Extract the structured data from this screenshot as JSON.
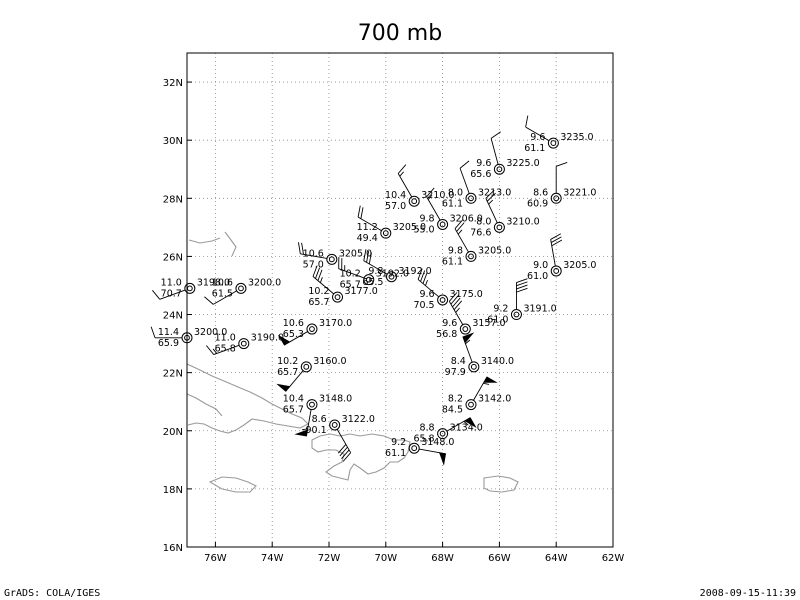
{
  "title": "700 mb",
  "footer": {
    "left": "GrADS: COLA/IGES",
    "right": "2008-09-15-11:39"
  },
  "map": {
    "lon_range": [
      -77,
      -62
    ],
    "lat_range": [
      16,
      33
    ],
    "lon_ticks": [
      {
        "value": -76,
        "label": "76W"
      },
      {
        "value": -74,
        "label": "74W"
      },
      {
        "value": -72,
        "label": "72W"
      },
      {
        "value": -70,
        "label": "70W"
      },
      {
        "value": -68,
        "label": "68W"
      },
      {
        "value": -66,
        "label": "66W"
      },
      {
        "value": -64,
        "label": "64W"
      },
      {
        "value": -62,
        "label": "62W"
      }
    ],
    "lat_ticks": [
      {
        "value": 16,
        "label": "16N"
      },
      {
        "value": 18,
        "label": "18N"
      },
      {
        "value": 20,
        "label": "20N"
      },
      {
        "value": 22,
        "label": "22N"
      },
      {
        "value": 24,
        "label": "24N"
      },
      {
        "value": 26,
        "label": "26N"
      },
      {
        "value": 28,
        "label": "28N"
      },
      {
        "value": 30,
        "label": "30N"
      },
      {
        "value": 32,
        "label": "32N"
      }
    ],
    "grid": true
  },
  "stations": [
    {
      "lon": -64.1,
      "lat": 29.9,
      "temp": "9.6",
      "rh": "61.1",
      "height": "3235.0",
      "dir": 300,
      "spd": 10
    },
    {
      "lon": -66.0,
      "lat": 29.0,
      "temp": "9.6",
      "rh": "65.6",
      "height": "3225.0",
      "dir": 345,
      "spd": 10
    },
    {
      "lon": -64.0,
      "lat": 28.0,
      "temp": "8.6",
      "rh": "60.9",
      "height": "3221.0",
      "dir": 0,
      "spd": 10
    },
    {
      "lon": -67.0,
      "lat": 28.0,
      "temp": "8.0",
      "rh": "61.1",
      "height": "3213.0",
      "dir": 340,
      "spd": 10
    },
    {
      "lon": -69.0,
      "lat": 27.9,
      "temp": "10.4",
      "rh": "57.0",
      "height": "3210.0",
      "dir": 330,
      "spd": 15
    },
    {
      "lon": -68.0,
      "lat": 27.1,
      "temp": "9.8",
      "rh": "55.0",
      "height": "3206.0",
      "dir": 330,
      "spd": 15
    },
    {
      "lon": -66.0,
      "lat": 27.0,
      "temp": "8.0",
      "rh": "76.6",
      "height": "3210.0",
      "dir": 335,
      "spd": 25
    },
    {
      "lon": -70.0,
      "lat": 26.8,
      "temp": "11.2",
      "rh": "49.4",
      "height": "3205.0",
      "dir": 300,
      "spd": 20
    },
    {
      "lon": -67.0,
      "lat": 26.0,
      "temp": "9.8",
      "rh": "61.1",
      "height": "3205.0",
      "dir": 330,
      "spd": 25
    },
    {
      "lon": -64.0,
      "lat": 25.5,
      "temp": "9.0",
      "rh": "61.0",
      "height": "3205.0",
      "dir": 350,
      "spd": 30
    },
    {
      "lon": -71.9,
      "lat": 25.9,
      "temp": "10.6",
      "rh": "57.0",
      "height": "3205.0",
      "dir": 280,
      "spd": 20
    },
    {
      "lon": -76.9,
      "lat": 24.9,
      "temp": "11.0",
      "rh": "70.7",
      "height": "3198.0",
      "dir": 250,
      "spd": 10
    },
    {
      "lon": -75.1,
      "lat": 24.9,
      "temp": "10.6",
      "rh": "61.5",
      "height": "3200.0",
      "dir": 240,
      "spd": 10
    },
    {
      "lon": -70.6,
      "lat": 25.2,
      "temp": "10.2",
      "rh": "65.7",
      "height": "3192.0",
      "dir": 290,
      "spd": 25
    },
    {
      "lon": -69.8,
      "lat": 25.3,
      "temp": "9.8",
      "rh": "65.5",
      "height": "3192.0",
      "dir": 300,
      "spd": 30
    },
    {
      "lon": -71.7,
      "lat": 24.6,
      "temp": "10.2",
      "rh": "65.7",
      "height": "3177.0",
      "dir": 310,
      "spd": 35
    },
    {
      "lon": -68.0,
      "lat": 24.5,
      "temp": "9.6",
      "rh": "70.5",
      "height": "3175.0",
      "dir": 310,
      "spd": 35
    },
    {
      "lon": -65.4,
      "lat": 24.0,
      "temp": "9.2",
      "rh": "61.0",
      "height": "3191.0",
      "dir": 0,
      "spd": 40
    },
    {
      "lon": -67.2,
      "lat": 23.5,
      "temp": "9.6",
      "rh": "56.8",
      "height": "3157.0",
      "dir": 330,
      "spd": 45
    },
    {
      "lon": -72.6,
      "lat": 23.5,
      "temp": "10.6",
      "rh": "65.3",
      "height": "3170.0",
      "dir": 240,
      "spd": 50
    },
    {
      "lon": -77.0,
      "lat": 23.2,
      "temp": "11.4",
      "rh": "65.9",
      "height": "3200.0",
      "dir": 270,
      "spd": 10
    },
    {
      "lon": -75.0,
      "lat": 23.0,
      "temp": "11.0",
      "rh": "65.8",
      "height": "3190.0",
      "dir": 250,
      "spd": 15
    },
    {
      "lon": -72.8,
      "lat": 22.2,
      "temp": "10.2",
      "rh": "65.7",
      "height": "3160.0",
      "dir": 220,
      "spd": 50
    },
    {
      "lon": -66.9,
      "lat": 22.2,
      "temp": "8.4",
      "rh": "97.9",
      "height": "3140.0",
      "dir": 340,
      "spd": 55
    },
    {
      "lon": -72.6,
      "lat": 20.9,
      "temp": "10.4",
      "rh": "65.7",
      "height": "3148.0",
      "dir": 190,
      "spd": 55
    },
    {
      "lon": -67.0,
      "lat": 20.9,
      "temp": "8.2",
      "rh": "84.5",
      "height": "3142.0",
      "dir": 30,
      "spd": 55
    },
    {
      "lon": -71.8,
      "lat": 20.2,
      "temp": "8.6",
      "rh": "90.1",
      "height": "3122.0",
      "dir": 150,
      "spd": 40
    },
    {
      "lon": -68.0,
      "lat": 19.9,
      "temp": "8.8",
      "rh": "65.8",
      "height": "3134.0",
      "dir": 60,
      "spd": 55
    },
    {
      "lon": -69.0,
      "lat": 19.4,
      "temp": "9.2",
      "rh": "61.1",
      "height": "3148.0",
      "dir": 100,
      "spd": 50
    }
  ]
}
